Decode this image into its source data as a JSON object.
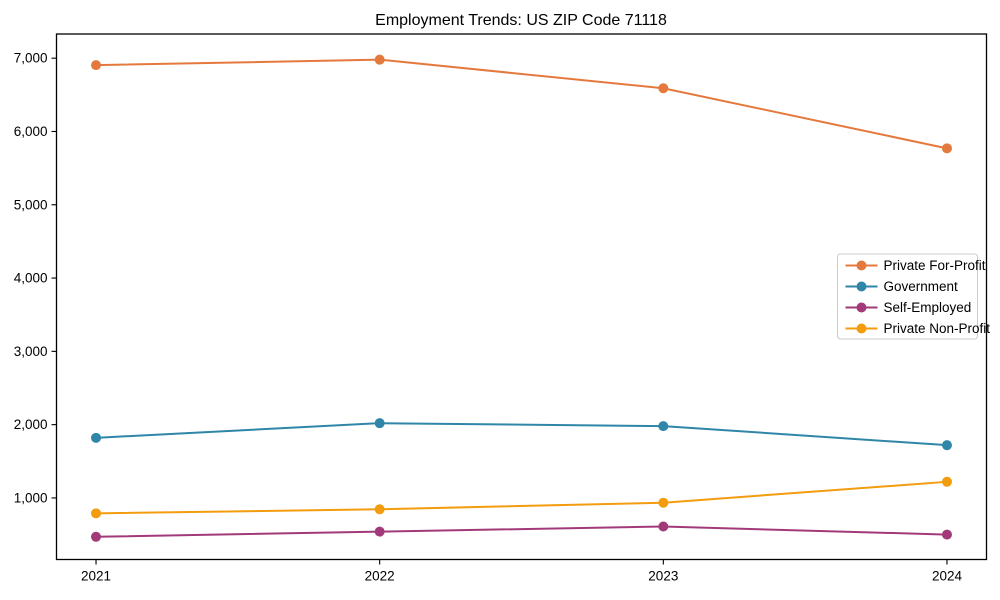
{
  "figure": {
    "background": "#ffffff"
  },
  "chart_data": {
    "type": "line",
    "title": "Employment Trends: US ZIP Code 71118",
    "categories": [
      "2021",
      "2022",
      "2023",
      "2024"
    ],
    "x_tick_labels": [
      "2021",
      "2022",
      "2023",
      "2024"
    ],
    "y_ticks": [
      1000,
      2000,
      3000,
      4000,
      5000,
      6000,
      7000
    ],
    "y_tick_labels": [
      "1,000",
      "2,000",
      "3,000",
      "4,000",
      "5,000",
      "6,000",
      "7,000"
    ],
    "ylim": [
      160,
      7330
    ],
    "x_margin_frac": 0.0425,
    "grid": false,
    "marker": "circle",
    "legend_position": "center-right",
    "axis_color": "#000000",
    "text_color": "#000000",
    "legend_border_color": "#cccccc",
    "series": [
      {
        "name": "Private For-Profit",
        "color": "#e5793d",
        "values": [
          6905,
          6980,
          6590,
          5770
        ]
      },
      {
        "name": "Government",
        "color": "#2f86a8",
        "values": [
          1820,
          2020,
          1980,
          1720
        ]
      },
      {
        "name": "Self-Employed",
        "color": "#a23a79",
        "values": [
          470,
          540,
          610,
          500
        ]
      },
      {
        "name": "Private Non-Profit",
        "color": "#f29c0e",
        "values": [
          790,
          845,
          935,
          1220
        ]
      }
    ]
  }
}
